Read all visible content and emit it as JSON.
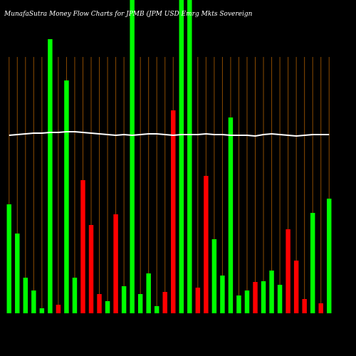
{
  "chart_data": {
    "type": "bar",
    "title": "MunafaSutra  Money Flow  Charts for JPMB (JPM USD Emrg Mkts Sovereign",
    "categories": [
      null,
      null,
      null,
      null,
      null,
      null,
      null,
      null,
      null,
      null,
      null,
      null,
      null,
      null,
      null,
      null,
      null,
      null,
      null,
      null,
      null,
      null,
      null,
      null,
      null,
      null,
      null,
      null,
      null,
      null,
      null,
      null,
      null,
      null,
      null,
      null,
      null,
      null,
      null,
      null
    ],
    "series": [
      {
        "type": "bar",
        "values": [
          153,
          112,
          50,
          32,
          7,
          385,
          12,
          327,
          50,
          187,
          124,
          27,
          17,
          139,
          38,
          440,
          27,
          56,
          10,
          30,
          285,
          440,
          440,
          36,
          193,
          104,
          53,
          275,
          25,
          32,
          44,
          45,
          60,
          40,
          118,
          74,
          20,
          141,
          14,
          161
        ],
        "colors": [
          "#00ff00",
          "#00ff00",
          "#00ff00",
          "#00ff00",
          "#00ff00",
          "#00ff00",
          "#ff0000",
          "#00ff00",
          "#00ff00",
          "#ff0000",
          "#ff0000",
          "#ff0000",
          "#00ff00",
          "#ff0000",
          "#00ff00",
          "#00ff00",
          "#00ff00",
          "#00ff00",
          "#00ff00",
          "#ff0000",
          "#ff0000",
          "#00ff00",
          "#00ff00",
          "#ff0000",
          "#ff0000",
          "#00ff00",
          "#00ff00",
          "#00ff00",
          "#00ff00",
          "#00ff00",
          "#ff0000",
          "#00ff00",
          "#00ff00",
          "#00ff00",
          "#ff0000",
          "#ff0000",
          "#ff0000",
          "#00ff00",
          "#ff0000",
          "#00ff00"
        ]
      },
      {
        "type": "line",
        "color": "#ffffff",
        "values": [
          250,
          251,
          252,
          253,
          253,
          254,
          254,
          255,
          255,
          254,
          253,
          252,
          251,
          250,
          251,
          250,
          251,
          252,
          252,
          251,
          250,
          251,
          251,
          251,
          252,
          251,
          251,
          250,
          250,
          250,
          249,
          251,
          252,
          251,
          250,
          249,
          250,
          251,
          251,
          251
        ]
      }
    ],
    "ylim": [
      0,
      440
    ]
  }
}
